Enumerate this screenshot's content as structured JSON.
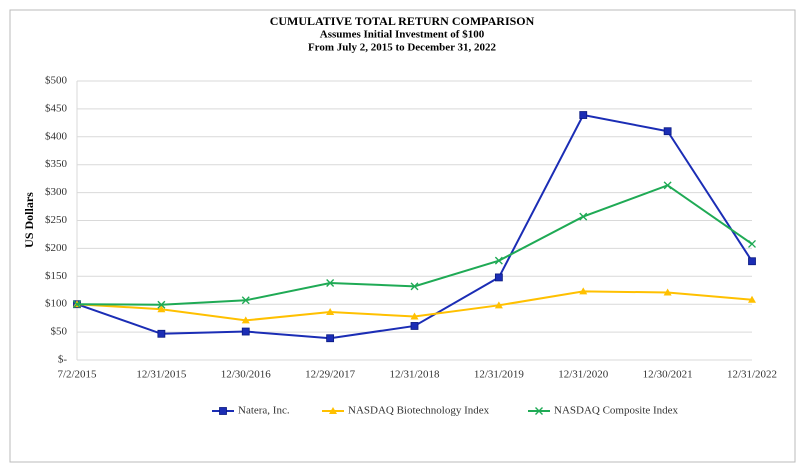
{
  "chart_data": {
    "type": "line",
    "title": "CUMULATIVE TOTAL RETURN COMPARISON",
    "subtitle": [
      "Assumes Initial Investment of $100",
      "From July 2, 2015 to December 31, 2022"
    ],
    "y_label": "US Dollars",
    "categories": [
      "7/2/2015",
      "12/31/2015",
      "12/30/2016",
      "12/29/2017",
      "12/31/2018",
      "12/31/2019",
      "12/31/2020",
      "12/30/2021",
      "12/31/2022"
    ],
    "series": [
      {
        "name": "Natera, Inc.",
        "color": "#1b2db5",
        "marker": "square",
        "values": [
          100,
          47,
          51,
          39,
          61,
          148,
          439,
          410,
          177
        ]
      },
      {
        "name": "NASDAQ Biotechnology Index",
        "color": "#ffc000",
        "marker": "triangle",
        "values": [
          100,
          91,
          71,
          86,
          78,
          98,
          123,
          121,
          108
        ]
      },
      {
        "name": "NASDAQ Composite Index",
        "color": "#1faa55",
        "marker": "x",
        "values": [
          100,
          99,
          107,
          138,
          132,
          178,
          257,
          313,
          208
        ]
      }
    ],
    "ylim": [
      0,
      500
    ],
    "yticks": [
      {
        "value": 0,
        "label": "$-"
      },
      {
        "value": 50,
        "label": "$50"
      },
      {
        "value": 100,
        "label": "$100"
      },
      {
        "value": 150,
        "label": "$150"
      },
      {
        "value": 200,
        "label": "$200"
      },
      {
        "value": 250,
        "label": "$250"
      },
      {
        "value": 300,
        "label": "$300"
      },
      {
        "value": 350,
        "label": "$350"
      },
      {
        "value": 400,
        "label": "$400"
      },
      {
        "value": 450,
        "label": "$450"
      },
      {
        "value": 500,
        "label": "$500"
      }
    ],
    "grid": true,
    "legend": "bottom"
  }
}
